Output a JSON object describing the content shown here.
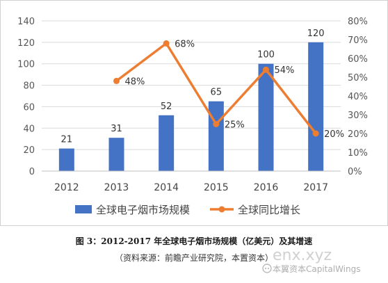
{
  "chart_data": {
    "type": "bar+line",
    "categories": [
      "2012",
      "2013",
      "2014",
      "2015",
      "2016",
      "2017"
    ],
    "series": [
      {
        "name": "全球电子烟市场规模",
        "type": "bar",
        "axis": "left",
        "values": [
          21,
          31,
          52,
          65,
          100,
          120
        ],
        "labels": [
          "21",
          "31",
          "52",
          "65",
          "100",
          "120"
        ]
      },
      {
        "name": "全球同比增长",
        "type": "line",
        "axis": "right",
        "values": [
          null,
          0.48,
          0.68,
          0.25,
          0.54,
          0.2
        ],
        "labels": [
          "",
          "48%",
          "68%",
          "25%",
          "54%",
          "20%"
        ]
      }
    ],
    "y_left": {
      "ylim": [
        0,
        140
      ],
      "ticks": [
        "0",
        "20",
        "40",
        "60",
        "80",
        "100",
        "120",
        "140"
      ]
    },
    "y_right": {
      "ylim": [
        0,
        0.8
      ],
      "ticks": [
        "0%",
        "10%",
        "20%",
        "30%",
        "40%",
        "50%",
        "60%",
        "70%",
        "80%"
      ]
    },
    "grid": true,
    "legend_position": "bottom",
    "colors": {
      "bar": "#4472c4",
      "line": "#ed7d31"
    }
  },
  "caption": "图 3：2012-2017 年全球电子烟市场规模（亿美元）及其增速",
  "source": "（资料来源：前瞻产业研究院，本置资本）",
  "watermark": {
    "text": "enx.xyz",
    "brand": "本翼资本CapitalWings"
  }
}
